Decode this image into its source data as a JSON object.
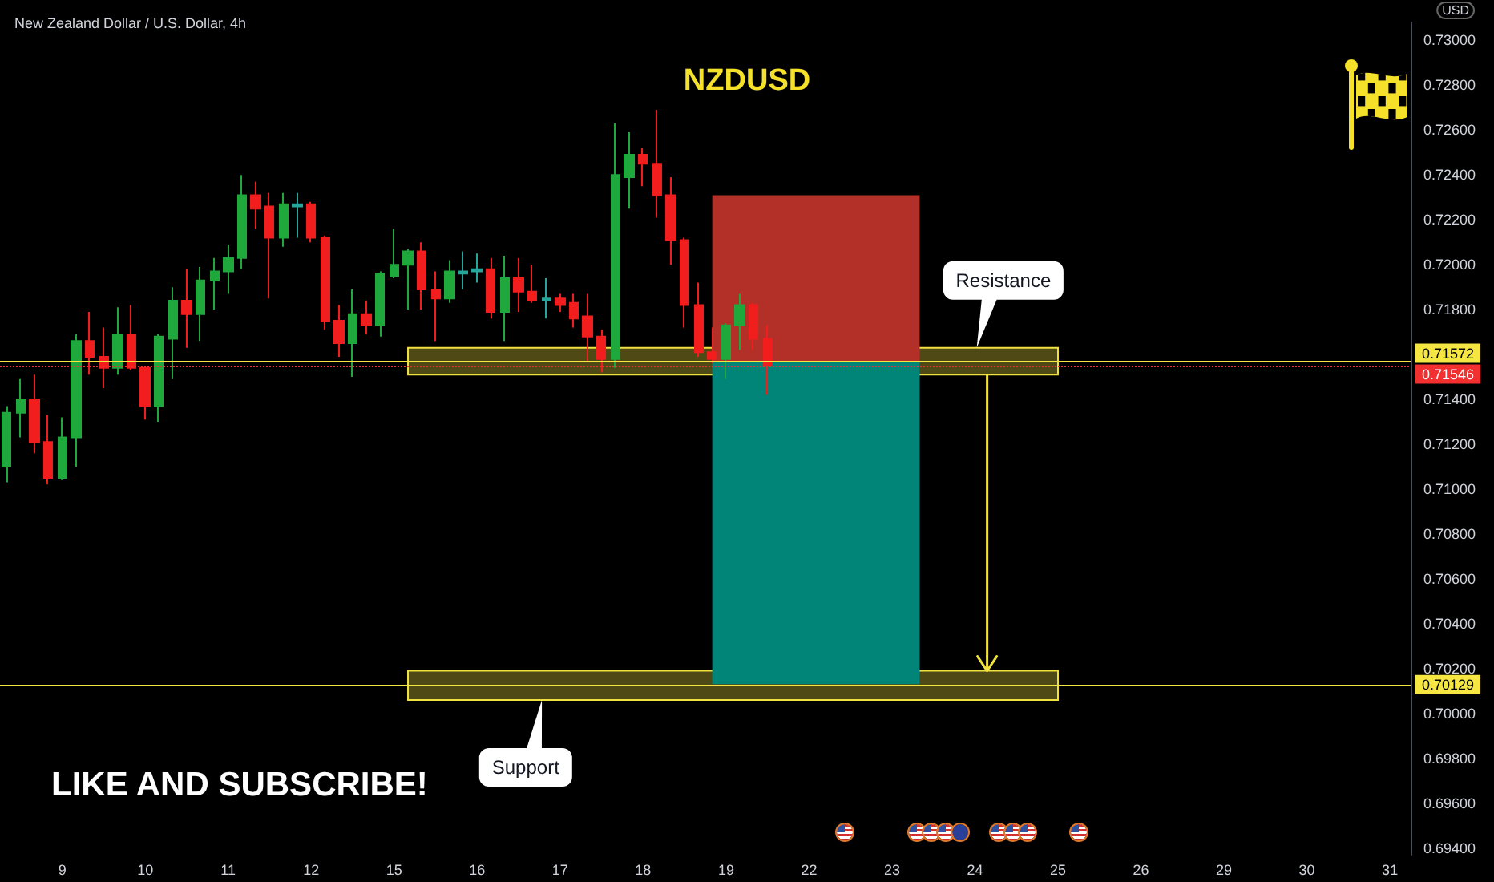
{
  "chart_data": {
    "type": "candlestick",
    "title": "NZDUSD",
    "subtitle": "New Zealand Dollar / U.S. Dollar, 4h",
    "ylabel": "USD",
    "annotations": [
      "LIKE AND SUBSCRIBE!"
    ],
    "categories": [
      null,
      null,
      null,
      null,
      "9",
      null,
      null,
      null,
      null,
      null,
      "10",
      null,
      null,
      null,
      null,
      null,
      "11",
      null,
      null,
      null,
      null,
      null,
      "12",
      null,
      null,
      null,
      null,
      null,
      "15",
      null,
      null,
      null,
      null,
      null,
      "16",
      null,
      null,
      null,
      null,
      null,
      "17",
      null,
      null,
      null,
      null,
      null,
      "18",
      null,
      null,
      null,
      null,
      null,
      "19",
      null,
      null,
      null,
      null,
      null,
      "22",
      null,
      null,
      null,
      null,
      null,
      "23",
      null,
      null,
      null,
      null,
      null,
      "24",
      null,
      null,
      null,
      null,
      null,
      "25",
      null,
      null,
      null,
      null,
      null,
      "26",
      null,
      null,
      null,
      null,
      null,
      "29",
      null,
      null,
      null,
      null,
      null,
      "30",
      null,
      null,
      null,
      null,
      null,
      "31",
      null
    ],
    "ohlc": [
      [
        0.711,
        0.7137,
        0.7103,
        0.7134
      ],
      [
        0.7134,
        0.7149,
        0.7123,
        0.714
      ],
      [
        0.714,
        0.7151,
        0.7116,
        0.7121
      ],
      [
        0.7121,
        0.7133,
        0.7102,
        0.7105
      ],
      [
        0.7105,
        0.7132,
        0.7104,
        0.7123
      ],
      [
        0.7123,
        0.7169,
        0.711,
        0.7166
      ],
      [
        0.7166,
        0.7179,
        0.7151,
        0.7159
      ],
      [
        0.7159,
        0.7172,
        0.7145,
        0.7154
      ],
      [
        0.7154,
        0.7181,
        0.7151,
        0.7169
      ],
      [
        0.7169,
        0.7182,
        0.7153,
        0.7154
      ],
      [
        0.7154,
        0.7155,
        0.7131,
        0.7137
      ],
      [
        0.7137,
        0.7169,
        0.713,
        0.7168
      ],
      [
        0.7167,
        0.719,
        0.7149,
        0.7184
      ],
      [
        0.7184,
        0.7198,
        0.7163,
        0.7178
      ],
      [
        0.7178,
        0.7199,
        0.7166,
        0.7193
      ],
      [
        0.7193,
        0.7203,
        0.718,
        0.7197
      ],
      [
        0.7197,
        0.7209,
        0.7187,
        0.7203
      ],
      [
        0.7203,
        0.724,
        0.7198,
        0.7231
      ],
      [
        0.7231,
        0.7237,
        0.7216,
        0.7225
      ],
      [
        0.7226,
        0.7232,
        0.7185,
        0.7212
      ],
      [
        0.7212,
        0.7232,
        0.7208,
        0.7227
      ],
      [
        0.7226,
        0.7232,
        0.7212,
        0.7227
      ],
      [
        0.7227,
        0.7228,
        0.721,
        0.7212
      ],
      [
        0.7212,
        0.7213,
        0.7171,
        0.7175
      ],
      [
        0.7175,
        0.7182,
        0.7159,
        0.7165
      ],
      [
        0.7165,
        0.7189,
        0.715,
        0.7178
      ],
      [
        0.7178,
        0.7184,
        0.7169,
        0.7173
      ],
      [
        0.7173,
        0.7197,
        0.7168,
        0.7196
      ],
      [
        0.7195,
        0.7216,
        0.7194,
        0.72
      ],
      [
        0.72,
        0.7207,
        0.718,
        0.7206
      ],
      [
        0.7206,
        0.721,
        0.718,
        0.7189
      ],
      [
        0.7189,
        0.7197,
        0.7166,
        0.7185
      ],
      [
        0.7185,
        0.7202,
        0.7183,
        0.7197
      ],
      [
        0.7196,
        0.7206,
        0.7189,
        0.7197
      ],
      [
        0.7197,
        0.7205,
        0.7192,
        0.7198
      ],
      [
        0.7198,
        0.7203,
        0.7176,
        0.7179
      ],
      [
        0.7179,
        0.7204,
        0.7166,
        0.7194
      ],
      [
        0.7194,
        0.7203,
        0.7179,
        0.7188
      ],
      [
        0.7188,
        0.72,
        0.7183,
        0.7184
      ],
      [
        0.7184,
        0.7194,
        0.7176,
        0.7185
      ],
      [
        0.7185,
        0.7187,
        0.7179,
        0.7182
      ],
      [
        0.7183,
        0.7187,
        0.7172,
        0.7176
      ],
      [
        0.7177,
        0.7187,
        0.7157,
        0.7168
      ],
      [
        0.7168,
        0.7171,
        0.7152,
        0.7158
      ],
      [
        0.7158,
        0.7263,
        0.7154,
        0.724
      ],
      [
        0.7239,
        0.7259,
        0.7225,
        0.7249
      ],
      [
        0.7249,
        0.7252,
        0.7235,
        0.7245
      ],
      [
        0.7245,
        0.7269,
        0.7221,
        0.7231
      ],
      [
        0.7231,
        0.7239,
        0.72,
        0.7211
      ],
      [
        0.7211,
        0.7212,
        0.7172,
        0.7182
      ],
      [
        0.7182,
        0.7192,
        0.7159,
        0.7161
      ],
      [
        0.7161,
        0.7172,
        0.7156,
        0.7158
      ],
      [
        0.7158,
        0.7174,
        0.7149,
        0.7173
      ],
      [
        0.7173,
        0.7187,
        0.7162,
        0.7182
      ],
      [
        0.7182,
        0.7183,
        0.7162,
        0.7167
      ],
      [
        0.7167,
        0.7173,
        0.7142,
        0.7155
      ],
      null,
      null,
      null,
      null,
      null,
      null,
      null,
      null,
      null,
      null,
      null,
      null,
      null,
      null,
      null,
      null,
      null,
      null,
      null,
      null,
      null,
      null,
      null,
      null,
      null,
      null,
      null,
      null,
      null,
      null,
      null,
      null,
      null,
      null,
      null,
      null,
      null,
      null,
      null,
      null,
      null,
      null,
      null,
      null,
      null,
      null
    ],
    "colors": [
      "#1fa83c",
      "#1fa83c",
      "#f21d1d",
      "#f21d1d",
      "#1fa83c",
      "#1fa83c",
      "#f21d1d",
      "#f21d1d",
      "#1fa83c",
      "#f21d1d",
      "#f21d1d",
      "#1fa83c",
      "#1fa83c",
      "#f21d1d",
      "#1fa83c",
      "#1fa83c",
      "#1fa83c",
      "#1fa83c",
      "#f21d1d",
      "#f21d1d",
      "#1fa83c",
      "#26a69a",
      "#f21d1d",
      "#f21d1d",
      "#f21d1d",
      "#1fa83c",
      "#f21d1d",
      "#1fa83c",
      "#1fa83c",
      "#1fa83c",
      "#f21d1d",
      "#f21d1d",
      "#1fa83c",
      "#26a69a",
      "#26a69a",
      "#f21d1d",
      "#1fa83c",
      "#f21d1d",
      "#f21d1d",
      "#26a69a",
      "#f21d1d",
      "#f21d1d",
      "#f21d1d",
      "#f21d1d",
      "#1fa83c",
      "#1fa83c",
      "#f21d1d",
      "#f21d1d",
      "#f21d1d",
      "#f21d1d",
      "#f21d1d",
      "#f21d1d",
      "#1fa83c",
      "#1fa83c",
      "#f21d1d",
      "#f21d1d",
      null,
      null,
      null,
      null,
      null,
      null,
      null,
      null,
      null,
      null,
      null,
      null,
      null,
      null,
      null,
      null,
      null,
      null,
      null,
      null,
      null,
      null,
      null,
      null,
      null,
      null,
      null,
      null,
      null,
      null,
      null,
      null,
      null,
      null,
      null,
      null,
      null,
      null,
      null,
      null,
      null,
      null,
      null,
      null,
      null,
      null
    ],
    "ylim": [
      0.6937,
      0.7308
    ],
    "yticks": [
      {
        "value": 0.694,
        "label": "0.69400"
      },
      {
        "value": 0.696,
        "label": "0.69600"
      },
      {
        "value": 0.698,
        "label": "0.69800"
      },
      {
        "value": 0.7,
        "label": "0.70000"
      },
      {
        "value": 0.702,
        "label": "0.70200"
      },
      {
        "value": 0.704,
        "label": "0.70400"
      },
      {
        "value": 0.706,
        "label": "0.70600"
      },
      {
        "value": 0.708,
        "label": "0.70800"
      },
      {
        "value": 0.71,
        "label": "0.71000"
      },
      {
        "value": 0.712,
        "label": "0.71200"
      },
      {
        "value": 0.714,
        "label": "0.71400"
      },
      {
        "value": 0.718,
        "label": "0.71800"
      },
      {
        "value": 0.72,
        "label": "0.72000"
      },
      {
        "value": 0.722,
        "label": "0.72200"
      },
      {
        "value": 0.724,
        "label": "0.72400"
      },
      {
        "value": 0.726,
        "label": "0.72600"
      },
      {
        "value": 0.728,
        "label": "0.72800"
      },
      {
        "value": 0.73,
        "label": "0.73000"
      }
    ],
    "ref_lines": [
      {
        "axis": "y",
        "value": 0.71572,
        "label": "0.71572",
        "color": "#f5e642"
      },
      {
        "axis": "y",
        "value": 0.71546,
        "label": "0.71546",
        "color": "#f23030",
        "line_style": "dotted"
      },
      {
        "axis": "y",
        "value": 0.70129,
        "label": "0.70129",
        "color": "#f5e642"
      }
    ],
    "bands": [
      {
        "axis": "y",
        "from": 0.7151,
        "to": 0.7163,
        "label": "Resistance",
        "color": "#f0e040"
      },
      {
        "axis": "y",
        "from": 0.7006,
        "to": 0.7019,
        "label": "Support",
        "color": "#f0e040"
      },
      {
        "axis": "y",
        "from": 0.71572,
        "to": 0.7231,
        "color": "#b23028"
      },
      {
        "axis": "y",
        "from": 0.7013,
        "to": 0.71572,
        "color": "#008578"
      }
    ]
  }
}
